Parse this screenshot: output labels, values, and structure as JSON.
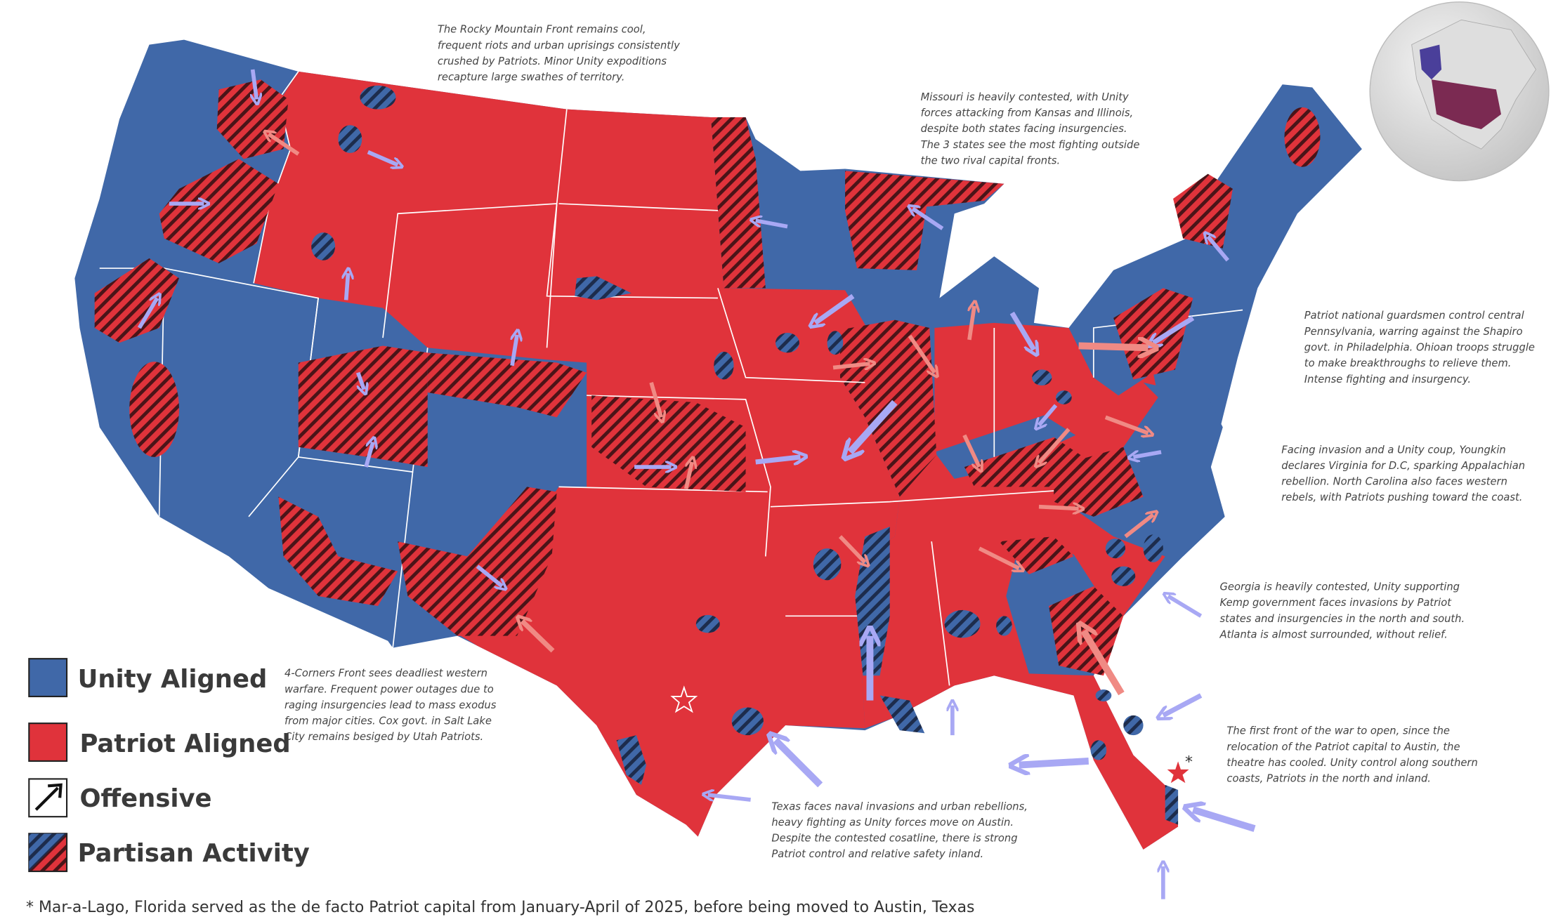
{
  "colors": {
    "unity": "#4068a8",
    "patriot": "#e0333b",
    "unity_arrow": "#a8a8f4",
    "patriot_arrow": "#f08a84",
    "hatch_dark": "#4a1418",
    "hatch_blue_dark": "#1d2c4c"
  },
  "legend": {
    "unity": "Unity Aligned",
    "patriot": "Patriot Aligned",
    "offensive": "Offensive",
    "partisan": "Partisan Activity"
  },
  "annotations": {
    "rocky": [
      "The Rocky Mountain Front remains cool,",
      "frequent riots and urban uprisings consistently",
      "crushed by Patriots. Minor Unity expoditions",
      "recapture large swathes of territory."
    ],
    "missouri": [
      "Missouri is heavily contested, with Unity",
      "forces attacking from Kansas and Illinois,",
      "despite both states facing insurgencies.",
      "The 3 states see the most fighting outside",
      "the two rival capital fronts."
    ],
    "pennsylvania": [
      "Patriot national guardsmen control central",
      "Pennsylvania, warring against the Shapiro",
      "govt. in Philadelphia. Ohioan troops struggle",
      "to make breakthroughs to relieve them.",
      "Intense fighting and insurgency."
    ],
    "virginia": [
      "Facing invasion and a Unity coup, Youngkin",
      "declares Virginia for D.C, sparking Appalachian",
      "rebellion. North Carolina also faces western",
      "rebels, with Patriots pushing toward the coast."
    ],
    "georgia": [
      "Georgia is heavily contested, Unity supporting",
      "Kemp government faces invasions by Patriot",
      "states and insurgencies in the north and south.",
      "Atlanta is almost surrounded, without relief."
    ],
    "florida": [
      "The first front of the war to open, since the",
      "relocation of the Patriot capital to Austin, the",
      "theatre has cooled. Unity control along southern",
      "coasts, Patriots in the north and inland."
    ],
    "four_corners": [
      "4-Corners Front sees deadliest western",
      "warfare. Frequent power outages due to",
      "raging insurgencies lead to mass exodus",
      "from major cities. Cox govt. in Salt Lake",
      "City remains besiged by Utah Patriots."
    ],
    "texas": [
      "Texas faces naval invasions and urban rebellions,",
      "heavy fighting as Unity forces move on Austin.",
      "Despite the contested cosatline, there is strong",
      "Patriot control and relative safety inland."
    ]
  },
  "markers": {
    "mar_a_lago_asterisk": "*"
  },
  "footnote": "* Mar-a-Lago, Florida served as the de facto Patriot capital from January-April of 2025, before being moved to Austin, Texas"
}
